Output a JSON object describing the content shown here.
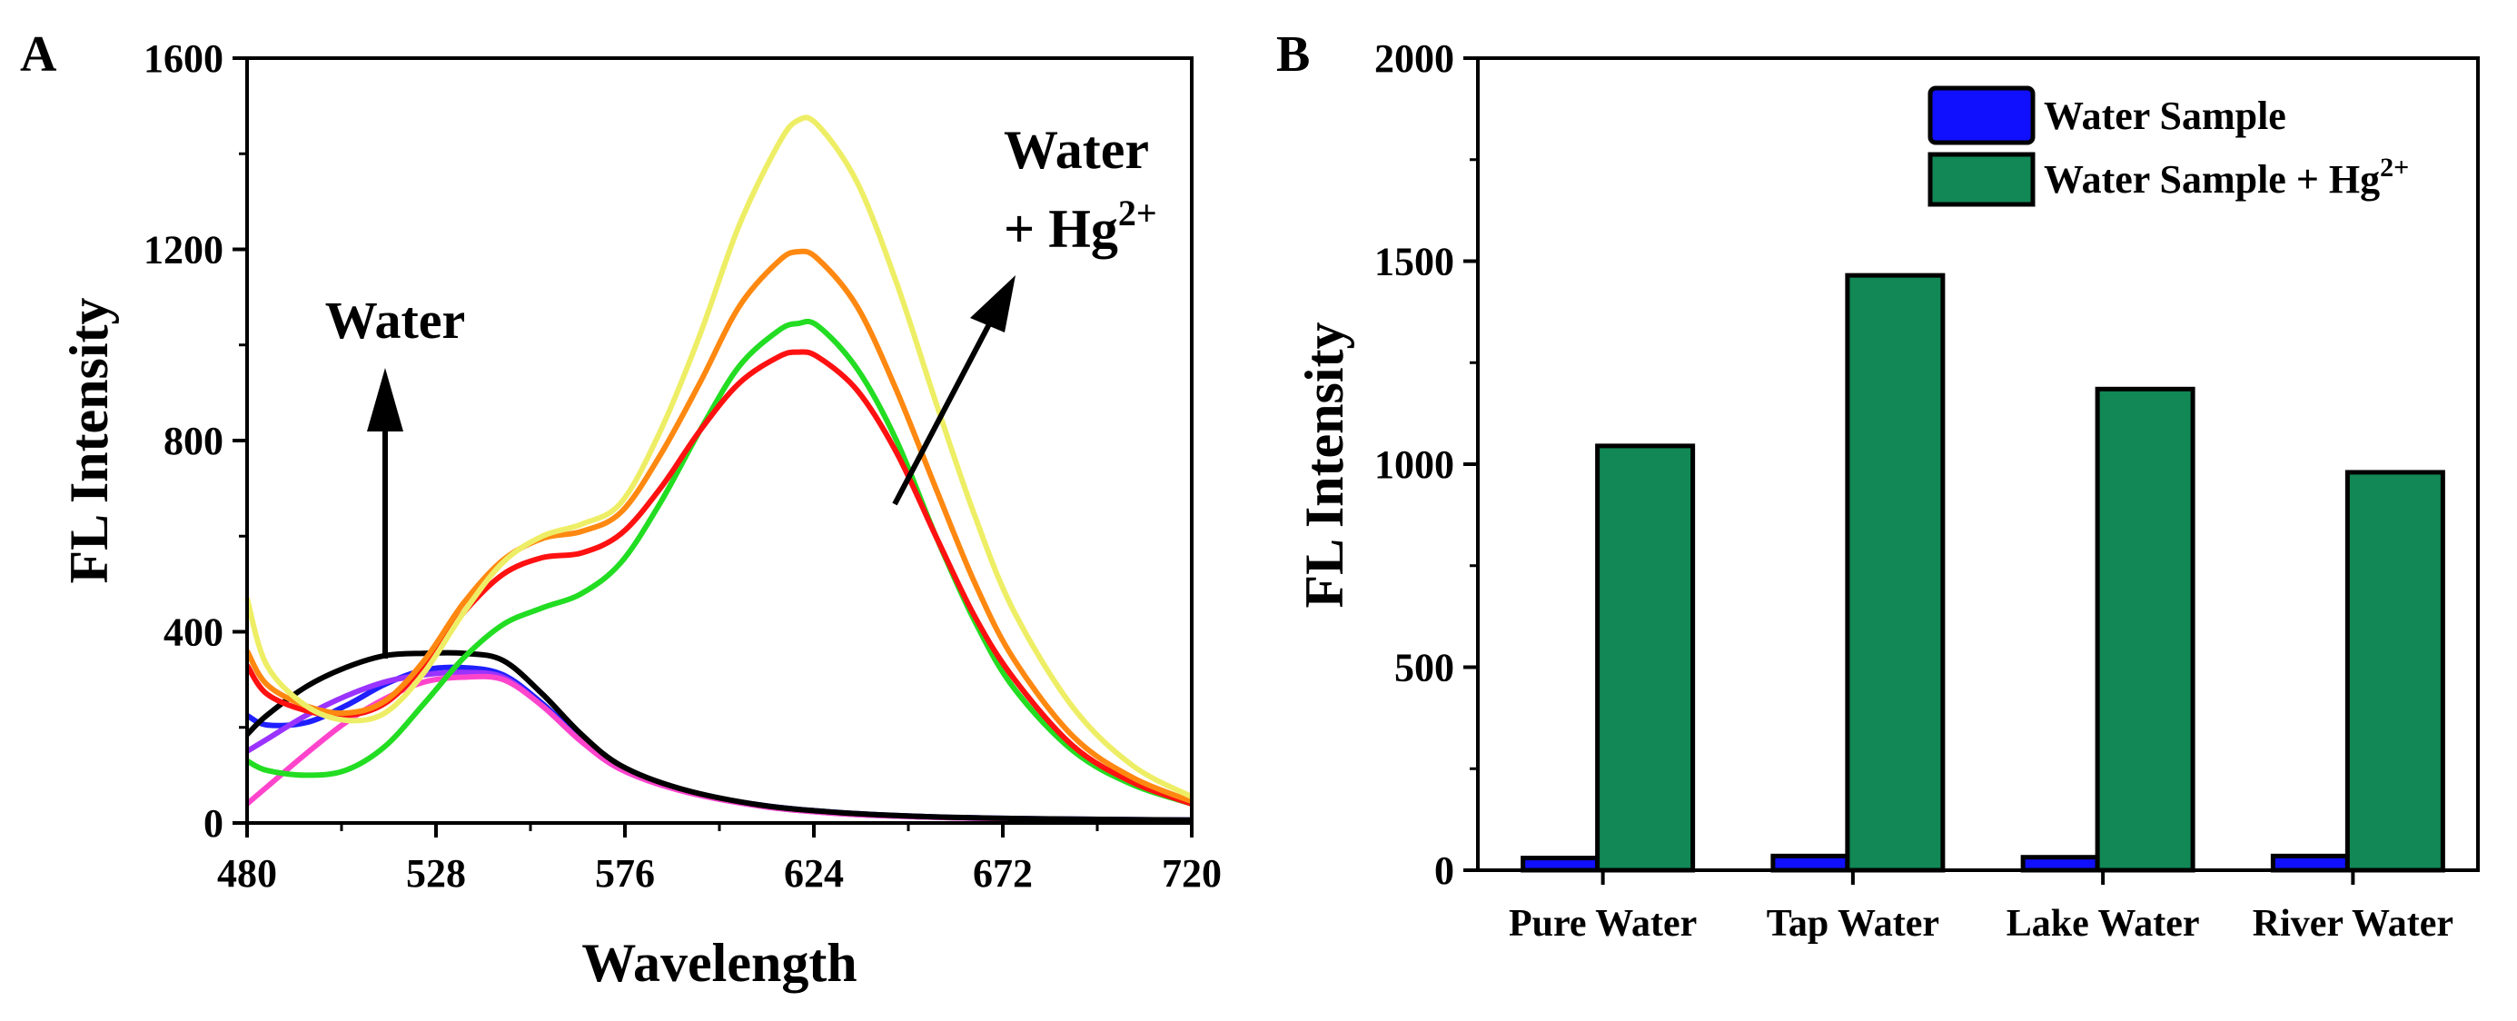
{
  "chart_data": [
    {
      "panel": "A",
      "type": "line",
      "xlabel": "Wavelength",
      "ylabel": "FL Intensity",
      "xlim": [
        480,
        720
      ],
      "ylim": [
        0,
        1600
      ],
      "xticks": [
        480,
        528,
        576,
        624,
        672,
        720
      ],
      "yticks": [
        0,
        400,
        800,
        1200,
        1600
      ],
      "annotations": {
        "water": "Water",
        "water_hg_line1": "Water",
        "water_hg_line2": "+ Hg",
        "water_hg_sup": "2+"
      },
      "series": [
        {
          "name": "blue",
          "color": "#1f1fff",
          "x": [
            480,
            485,
            495,
            505,
            515,
            525,
            535,
            545,
            555,
            565,
            575,
            590,
            610,
            630,
            650,
            670,
            690,
            720
          ],
          "y": [
            225,
            205,
            210,
            245,
            290,
            320,
            325,
            310,
            250,
            175,
            115,
            70,
            38,
            22,
            14,
            10,
            8,
            6
          ]
        },
        {
          "name": "violet",
          "color": "#9a33ff",
          "x": [
            480,
            485,
            495,
            505,
            515,
            525,
            535,
            545,
            555,
            565,
            575,
            590,
            610,
            630,
            650,
            670,
            690,
            720
          ],
          "y": [
            150,
            175,
            225,
            265,
            295,
            310,
            315,
            305,
            245,
            170,
            112,
            68,
            36,
            20,
            13,
            9,
            7,
            5
          ]
        },
        {
          "name": "magenta",
          "color": "#ff44cc",
          "x": [
            480,
            485,
            495,
            505,
            515,
            525,
            535,
            545,
            555,
            565,
            575,
            590,
            610,
            630,
            650,
            670,
            690,
            720
          ],
          "y": [
            40,
            75,
            145,
            210,
            260,
            295,
            305,
            300,
            245,
            170,
            112,
            68,
            36,
            20,
            13,
            9,
            7,
            5
          ]
        },
        {
          "name": "black",
          "color": "#000000",
          "x": [
            480,
            485,
            495,
            505,
            515,
            525,
            535,
            545,
            555,
            565,
            575,
            590,
            610,
            630,
            650,
            670,
            690,
            720
          ],
          "y": [
            185,
            225,
            285,
            325,
            350,
            355,
            355,
            340,
            270,
            185,
            120,
            72,
            38,
            22,
            14,
            10,
            8,
            6
          ]
        },
        {
          "name": "green",
          "color": "#22dd22",
          "x": [
            480,
            485,
            495,
            505,
            515,
            525,
            535,
            545,
            555,
            565,
            575,
            585,
            595,
            605,
            615,
            620,
            625,
            635,
            645,
            655,
            665,
            675,
            690,
            705,
            720
          ],
          "y": [
            130,
            110,
            100,
            110,
            160,
            250,
            345,
            415,
            450,
            480,
            545,
            670,
            820,
            955,
            1030,
            1045,
            1040,
            950,
            800,
            600,
            420,
            280,
            150,
            80,
            40
          ]
        },
        {
          "name": "red",
          "color": "#ff1111",
          "x": [
            480,
            485,
            495,
            505,
            515,
            525,
            535,
            545,
            555,
            565,
            575,
            585,
            595,
            605,
            615,
            620,
            625,
            635,
            645,
            655,
            665,
            675,
            690,
            705,
            720
          ],
          "y": [
            330,
            270,
            235,
            225,
            250,
            330,
            440,
            520,
            555,
            565,
            605,
            700,
            820,
            920,
            975,
            985,
            975,
            905,
            775,
            600,
            430,
            300,
            160,
            85,
            40
          ]
        },
        {
          "name": "orange",
          "color": "#ff8811",
          "x": [
            480,
            485,
            495,
            505,
            515,
            525,
            535,
            545,
            555,
            565,
            575,
            585,
            595,
            605,
            615,
            620,
            625,
            635,
            645,
            655,
            665,
            675,
            690,
            705,
            720
          ],
          "y": [
            360,
            290,
            245,
            230,
            255,
            340,
            460,
            550,
            595,
            610,
            650,
            770,
            920,
            1080,
            1175,
            1195,
            1180,
            1080,
            905,
            700,
            500,
            340,
            180,
            95,
            45
          ]
        },
        {
          "name": "yellow",
          "color": "#eeee66",
          "x": [
            480,
            485,
            495,
            505,
            515,
            525,
            535,
            545,
            555,
            565,
            575,
            585,
            595,
            605,
            615,
            620,
            625,
            635,
            645,
            655,
            665,
            675,
            690,
            705,
            720
          ],
          "y": [
            470,
            330,
            245,
            215,
            230,
            315,
            440,
            545,
            600,
            625,
            670,
            820,
            1020,
            1250,
            1420,
            1470,
            1460,
            1340,
            1130,
            880,
            640,
            440,
            240,
            120,
            55
          ]
        }
      ]
    },
    {
      "panel": "B",
      "type": "bar",
      "ylabel": "FL Intensity",
      "ylim": [
        0,
        2000
      ],
      "yticks": [
        0,
        500,
        1000,
        1500,
        2000
      ],
      "categories": [
        "Pure Water",
        "Tap Water",
        "Lake Water",
        "River Water"
      ],
      "legend": {
        "placement": "top-right",
        "entries": [
          "Water Sample",
          "Water Sample + Hg"
        ],
        "hg_sup": "2+"
      },
      "series": [
        {
          "name": "Water Sample",
          "color": "#1010ff",
          "values": [
            30,
            35,
            32,
            35
          ]
        },
        {
          "name": "Water Sample + Hg2+",
          "color": "#118855",
          "values": [
            1045,
            1465,
            1185,
            980
          ]
        }
      ]
    }
  ]
}
